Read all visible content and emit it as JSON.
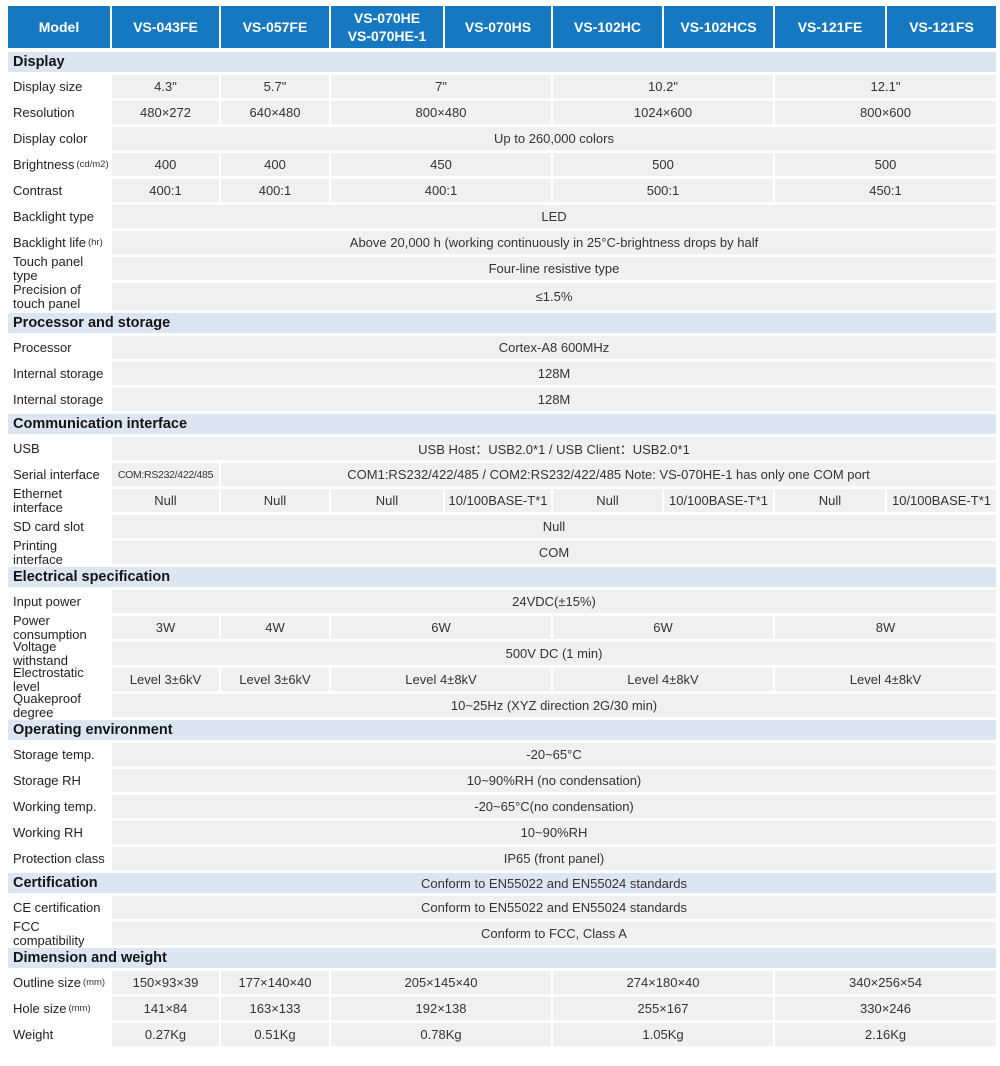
{
  "colors": {
    "header_bg": "#1778c2",
    "header_text": "#ffffff",
    "band_bg": "#dce6f2",
    "cell_bg": "#f0f0f0",
    "label_bg": "#ffffff",
    "text": "#333333"
  },
  "header": {
    "model_label": "Model",
    "columns": [
      "VS-043FE",
      "VS-057FE",
      "VS-070HE\nVS-070HE-1",
      "VS-070HS",
      "VS-102HC",
      "VS-102HCS",
      "VS-121FE",
      "VS-121FS"
    ]
  },
  "sections": [
    {
      "title": "Display",
      "rows": [
        {
          "label": "Display size",
          "cells": [
            {
              "span": 1,
              "text": "4.3\""
            },
            {
              "span": 1,
              "text": "5.7\""
            },
            {
              "span": 2,
              "text": "7\""
            },
            {
              "span": 2,
              "text": "10.2\""
            },
            {
              "span": 2,
              "text": "12.1\""
            }
          ]
        },
        {
          "label": "Resolution",
          "cells": [
            {
              "span": 1,
              "text": "480×272"
            },
            {
              "span": 1,
              "text": "640×480"
            },
            {
              "span": 2,
              "text": "800×480"
            },
            {
              "span": 2,
              "text": "1024×600"
            },
            {
              "span": 2,
              "text": "800×600"
            }
          ]
        },
        {
          "label": "Display color",
          "cells": [
            {
              "span": 8,
              "text": "Up to 260,000 colors"
            }
          ]
        },
        {
          "label": "Brightness",
          "label_unit": "(cd/m2)",
          "cells": [
            {
              "span": 1,
              "text": "400"
            },
            {
              "span": 1,
              "text": "400"
            },
            {
              "span": 2,
              "text": "450"
            },
            {
              "span": 2,
              "text": "500"
            },
            {
              "span": 2,
              "text": "500"
            }
          ]
        },
        {
          "label": "Contrast",
          "cells": [
            {
              "span": 1,
              "text": "400:1"
            },
            {
              "span": 1,
              "text": "400:1"
            },
            {
              "span": 2,
              "text": "400:1"
            },
            {
              "span": 2,
              "text": "500:1"
            },
            {
              "span": 2,
              "text": "450:1"
            }
          ]
        },
        {
          "label": "Backlight type",
          "cells": [
            {
              "span": 8,
              "text": "LED"
            }
          ]
        },
        {
          "label": "Backlight life",
          "label_unit": "(hr)",
          "cells": [
            {
              "span": 8,
              "text": "Above 20,000 h (working continuously in 25°C-brightness drops by half"
            }
          ]
        },
        {
          "label": "Touch panel type",
          "cells": [
            {
              "span": 8,
              "text": "Four-line resistive type"
            }
          ]
        },
        {
          "label": "Precision of\ntouch panel",
          "tall": true,
          "cells": [
            {
              "span": 8,
              "text": "≤1.5%"
            }
          ]
        }
      ]
    },
    {
      "title": "Processor and storage",
      "rows": [
        {
          "label": "Processor",
          "cells": [
            {
              "span": 8,
              "text": "Cortex-A8 600MHz"
            }
          ]
        },
        {
          "label": "Internal storage",
          "cells": [
            {
              "span": 8,
              "text": "128M"
            }
          ]
        },
        {
          "label": "Internal storage",
          "cells": [
            {
              "span": 8,
              "text": "128M"
            }
          ]
        }
      ]
    },
    {
      "title": "Communication interface",
      "rows": [
        {
          "label": "USB",
          "cells": [
            {
              "span": 8,
              "text": "USB Host：USB2.0*1   /   USB Client：USB2.0*1"
            }
          ]
        },
        {
          "label": "Serial interface",
          "cells": [
            {
              "span": 1,
              "text": "COM:RS232/422/485",
              "small": true
            },
            {
              "span": 7,
              "text": "COM1:RS232/422/485   /   COM2:RS232/422/485   Note: VS-070HE-1 has only one COM port"
            }
          ]
        },
        {
          "label": "Ethernet interface",
          "cells": [
            {
              "span": 1,
              "text": "Null"
            },
            {
              "span": 1,
              "text": "Null"
            },
            {
              "span": 1,
              "text": "Null"
            },
            {
              "span": 1,
              "text": "10/100BASE-T*1"
            },
            {
              "span": 1,
              "text": "Null"
            },
            {
              "span": 1,
              "text": "10/100BASE-T*1"
            },
            {
              "span": 1,
              "text": "Null"
            },
            {
              "span": 1,
              "text": "10/100BASE-T*1"
            }
          ]
        },
        {
          "label": "SD card slot",
          "cells": [
            {
              "span": 8,
              "text": "Null"
            }
          ]
        },
        {
          "label": "Printing interface",
          "cells": [
            {
              "span": 8,
              "text": "COM"
            }
          ]
        }
      ]
    },
    {
      "title": "Electrical specification",
      "rows": [
        {
          "label": "Input power",
          "cells": [
            {
              "span": 8,
              "text": "24VDC(±15%)"
            }
          ]
        },
        {
          "label": "Power consumption",
          "cells": [
            {
              "span": 1,
              "text": "3W"
            },
            {
              "span": 1,
              "text": "4W"
            },
            {
              "span": 2,
              "text": "6W"
            },
            {
              "span": 2,
              "text": "6W"
            },
            {
              "span": 2,
              "text": "8W"
            }
          ]
        },
        {
          "label": "Voltage withstand",
          "cells": [
            {
              "span": 8,
              "text": "500V DC (1 min)"
            }
          ]
        },
        {
          "label": "Electrostatic level",
          "cells": [
            {
              "span": 1,
              "text": "Level 3±6kV"
            },
            {
              "span": 1,
              "text": "Level 3±6kV"
            },
            {
              "span": 2,
              "text": "Level 4±8kV"
            },
            {
              "span": 2,
              "text": "Level 4±8kV"
            },
            {
              "span": 2,
              "text": "Level 4±8kV"
            }
          ]
        },
        {
          "label": "Quakeproof degree",
          "cells": [
            {
              "span": 8,
              "text": "10~25Hz (XYZ direction 2G/30 min)"
            }
          ]
        }
      ]
    },
    {
      "title": "Operating environment",
      "rows": [
        {
          "label": "Storage temp.",
          "cells": [
            {
              "span": 8,
              "text": "-20~65°C"
            }
          ]
        },
        {
          "label": "Storage RH",
          "cells": [
            {
              "span": 8,
              "text": "10~90%RH (no condensation)"
            }
          ]
        },
        {
          "label": "Working temp.",
          "cells": [
            {
              "span": 8,
              "text": "-20~65°C(no condensation)"
            }
          ]
        },
        {
          "label": "Working RH",
          "cells": [
            {
              "span": 8,
              "text": "10~90%RH"
            }
          ]
        },
        {
          "label": "Protection class",
          "cells": [
            {
              "span": 8,
              "text": "IP65 (front panel)"
            }
          ]
        }
      ]
    },
    {
      "title": "Certification",
      "note": "Conform to EN55022 and EN55024 standards",
      "rows": [
        {
          "label": "CE certification",
          "cells": [
            {
              "span": 8,
              "text": "Conform to EN55022 and EN55024 standards"
            }
          ]
        },
        {
          "label": "FCC compatibility",
          "cells": [
            {
              "span": 8,
              "text": "Conform to FCC, Class A"
            }
          ]
        }
      ]
    },
    {
      "title": "Dimension and weight",
      "rows": [
        {
          "label": "Outline size",
          "label_unit": "(mm)",
          "cells": [
            {
              "span": 1,
              "text": "150×93×39"
            },
            {
              "span": 1,
              "text": "177×140×40"
            },
            {
              "span": 2,
              "text": "205×145×40"
            },
            {
              "span": 2,
              "text": "274×180×40"
            },
            {
              "span": 2,
              "text": "340×256×54"
            }
          ]
        },
        {
          "label": "Hole size",
          "label_unit": "(mm)",
          "cells": [
            {
              "span": 1,
              "text": "141×84"
            },
            {
              "span": 1,
              "text": "163×133"
            },
            {
              "span": 2,
              "text": "192×138"
            },
            {
              "span": 2,
              "text": "255×167"
            },
            {
              "span": 2,
              "text": "330×246"
            }
          ]
        },
        {
          "label": "Weight",
          "cells": [
            {
              "span": 1,
              "text": "0.27Kg"
            },
            {
              "span": 1,
              "text": "0.51Kg"
            },
            {
              "span": 2,
              "text": "0.78Kg"
            },
            {
              "span": 2,
              "text": "1.05Kg"
            },
            {
              "span": 2,
              "text": "2.16Kg"
            }
          ]
        }
      ]
    }
  ]
}
